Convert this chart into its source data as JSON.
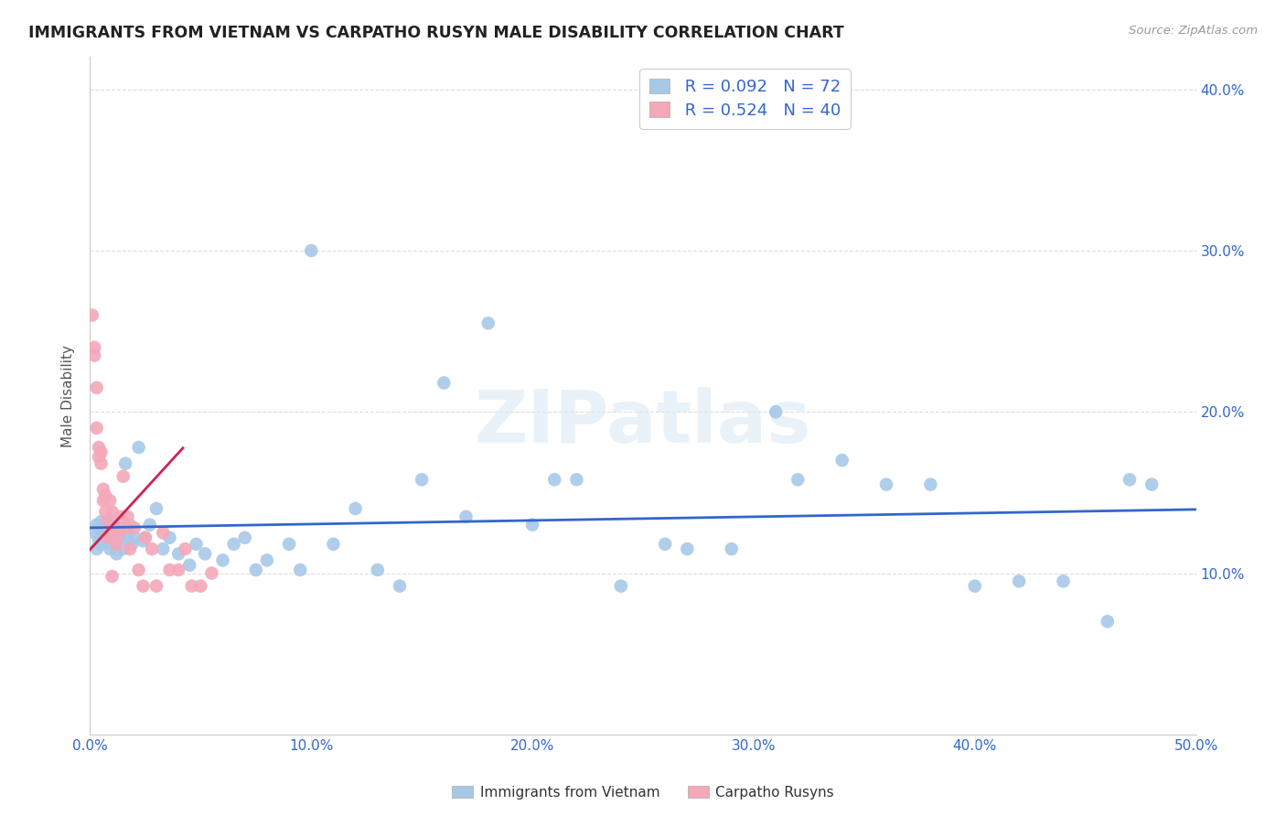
{
  "title": "IMMIGRANTS FROM VIETNAM VS CARPATHO RUSYN MALE DISABILITY CORRELATION CHART",
  "source": "Source: ZipAtlas.com",
  "ylabel": "Male Disability",
  "xlim": [
    0.0,
    0.5
  ],
  "ylim": [
    0.0,
    0.42
  ],
  "xticks": [
    0.0,
    0.1,
    0.2,
    0.3,
    0.4,
    0.5
  ],
  "yticks": [
    0.0,
    0.1,
    0.2,
    0.3,
    0.4
  ],
  "xticklabels": [
    "0.0%",
    "10.0%",
    "20.0%",
    "30.0%",
    "40.0%",
    "50.0%"
  ],
  "yticklabels": [
    "",
    "10.0%",
    "20.0%",
    "30.0%",
    "40.0%"
  ],
  "legend_labels": [
    "Immigrants from Vietnam",
    "Carpatho Rusyns"
  ],
  "r_vietnam": 0.092,
  "n_vietnam": 72,
  "r_rusyn": 0.524,
  "n_rusyn": 40,
  "color_vietnam": "#a8c8e8",
  "color_rusyn": "#f4a8b8",
  "line_color_vietnam": "#3366cc",
  "line_color_rusyn": "#cc2255",
  "dash_color": "#ccbbcc",
  "watermark": "ZIPatlas",
  "vietnam_x": [
    0.002,
    0.003,
    0.003,
    0.004,
    0.004,
    0.005,
    0.005,
    0.006,
    0.006,
    0.007,
    0.007,
    0.008,
    0.008,
    0.009,
    0.009,
    0.01,
    0.01,
    0.011,
    0.012,
    0.013,
    0.014,
    0.015,
    0.016,
    0.017,
    0.018,
    0.019,
    0.02,
    0.022,
    0.024,
    0.025,
    0.027,
    0.03,
    0.033,
    0.036,
    0.04,
    0.045,
    0.048,
    0.052,
    0.06,
    0.065,
    0.07,
    0.075,
    0.08,
    0.09,
    0.095,
    0.1,
    0.11,
    0.12,
    0.13,
    0.14,
    0.15,
    0.16,
    0.17,
    0.18,
    0.2,
    0.21,
    0.22,
    0.24,
    0.26,
    0.27,
    0.29,
    0.31,
    0.32,
    0.34,
    0.36,
    0.38,
    0.4,
    0.42,
    0.44,
    0.46,
    0.47,
    0.48
  ],
  "vietnam_y": [
    0.125,
    0.13,
    0.115,
    0.128,
    0.12,
    0.132,
    0.118,
    0.125,
    0.122,
    0.13,
    0.119,
    0.128,
    0.122,
    0.115,
    0.132,
    0.12,
    0.125,
    0.118,
    0.112,
    0.128,
    0.122,
    0.115,
    0.168,
    0.122,
    0.13,
    0.118,
    0.122,
    0.178,
    0.12,
    0.122,
    0.13,
    0.14,
    0.115,
    0.122,
    0.112,
    0.105,
    0.118,
    0.112,
    0.108,
    0.118,
    0.122,
    0.102,
    0.108,
    0.118,
    0.102,
    0.3,
    0.118,
    0.14,
    0.102,
    0.092,
    0.158,
    0.218,
    0.135,
    0.255,
    0.13,
    0.158,
    0.158,
    0.092,
    0.118,
    0.115,
    0.115,
    0.2,
    0.158,
    0.17,
    0.155,
    0.155,
    0.092,
    0.095,
    0.095,
    0.07,
    0.158,
    0.155
  ],
  "rusyn_x": [
    0.001,
    0.002,
    0.002,
    0.003,
    0.003,
    0.004,
    0.004,
    0.005,
    0.005,
    0.006,
    0.006,
    0.007,
    0.007,
    0.008,
    0.008,
    0.009,
    0.009,
    0.01,
    0.01,
    0.011,
    0.012,
    0.013,
    0.014,
    0.015,
    0.016,
    0.017,
    0.018,
    0.02,
    0.022,
    0.024,
    0.025,
    0.028,
    0.03,
    0.033,
    0.036,
    0.04,
    0.043,
    0.046,
    0.05,
    0.055
  ],
  "rusyn_y": [
    0.26,
    0.235,
    0.24,
    0.19,
    0.215,
    0.178,
    0.172,
    0.168,
    0.175,
    0.152,
    0.145,
    0.138,
    0.148,
    0.132,
    0.122,
    0.145,
    0.125,
    0.138,
    0.098,
    0.128,
    0.118,
    0.125,
    0.135,
    0.16,
    0.128,
    0.135,
    0.115,
    0.128,
    0.102,
    0.092,
    0.122,
    0.115,
    0.092,
    0.125,
    0.102,
    0.102,
    0.115,
    0.092,
    0.092,
    0.1
  ]
}
